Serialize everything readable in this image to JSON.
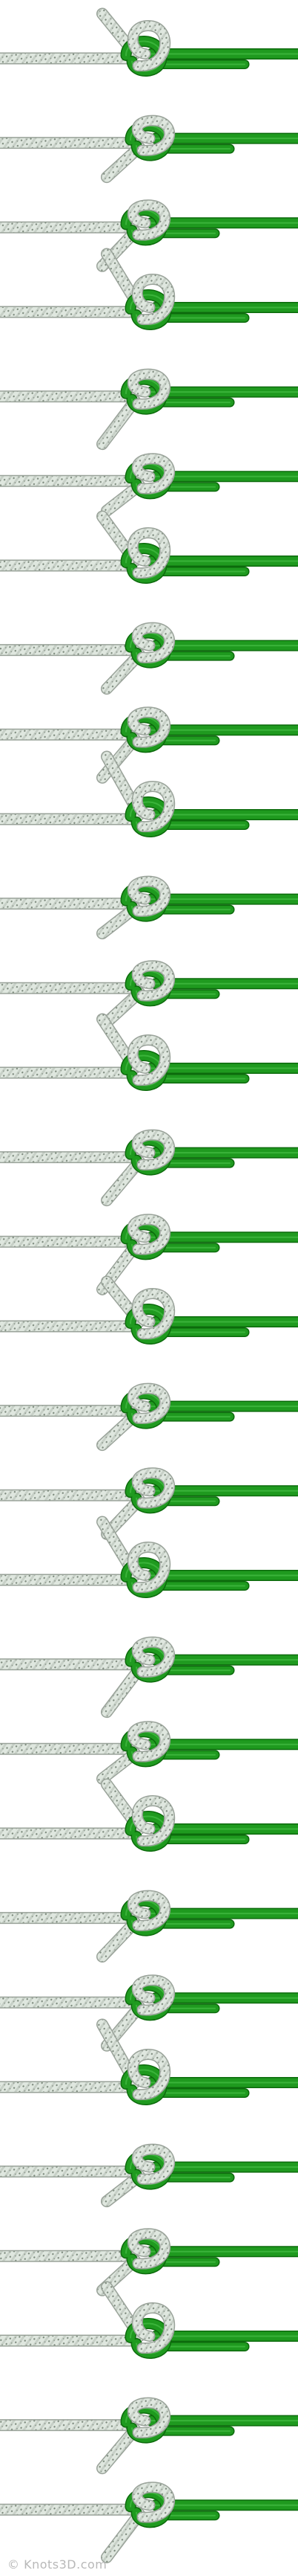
{
  "title": "",
  "frame_count": 30,
  "colors": {
    "white_rope": "#dfe7df",
    "white_rope_shadow": "#9aa39a",
    "white_rope_fleck": "#7d8a7d",
    "green_rope": "#1f9a1f",
    "green_rope_dark": "#0c6a0c",
    "green_rope_light": "#4cc44c"
  },
  "icons": [
    "knot-frame-illustration"
  ],
  "watermark": "© Knots3D.com"
}
